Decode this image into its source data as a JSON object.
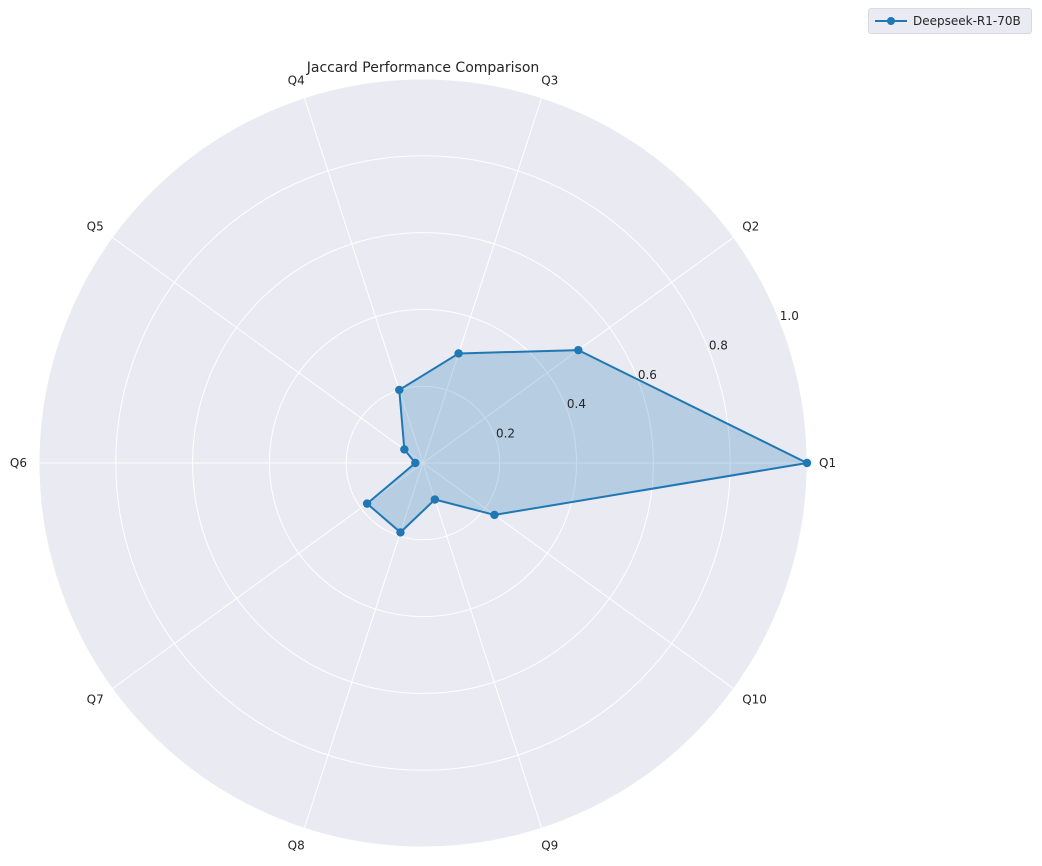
{
  "chart_data": {
    "type": "radar",
    "title": "Jaccard Performance Comparison",
    "categories": [
      "Q1",
      "Q2",
      "Q3",
      "Q4",
      "Q5",
      "Q6",
      "Q7",
      "Q8",
      "Q9",
      "Q10"
    ],
    "series": [
      {
        "name": "Deepseek-R1-70B",
        "values": [
          1.0,
          0.5,
          0.3,
          0.2,
          0.06,
          0.02,
          0.18,
          0.19,
          0.1,
          0.23
        ],
        "color": "#1f77b4"
      }
    ],
    "rlim": [
      0,
      1.0
    ],
    "r_ticks": [
      "0.2",
      "0.4",
      "0.6",
      "0.8",
      "1.0"
    ],
    "grid": true,
    "legend_position": "top-right",
    "background_color": "#eaeaf2",
    "grid_color": "#ffffff"
  }
}
